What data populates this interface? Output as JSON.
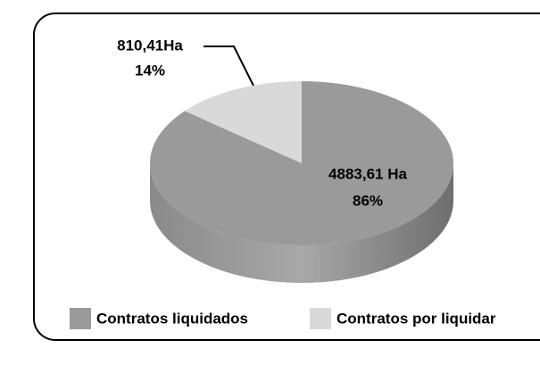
{
  "chart_data": {
    "type": "pie3d",
    "categories": [
      "Contratos liquidados",
      "Contratos por liquidar"
    ],
    "values": [
      86,
      14
    ],
    "value_labels": [
      "86%",
      "14%"
    ],
    "area_labels": [
      "4883,61 Ha",
      "810,41Ha"
    ],
    "colors": [
      "#9a9a9a",
      "#d9d9d9"
    ],
    "legend": "bottom"
  }
}
